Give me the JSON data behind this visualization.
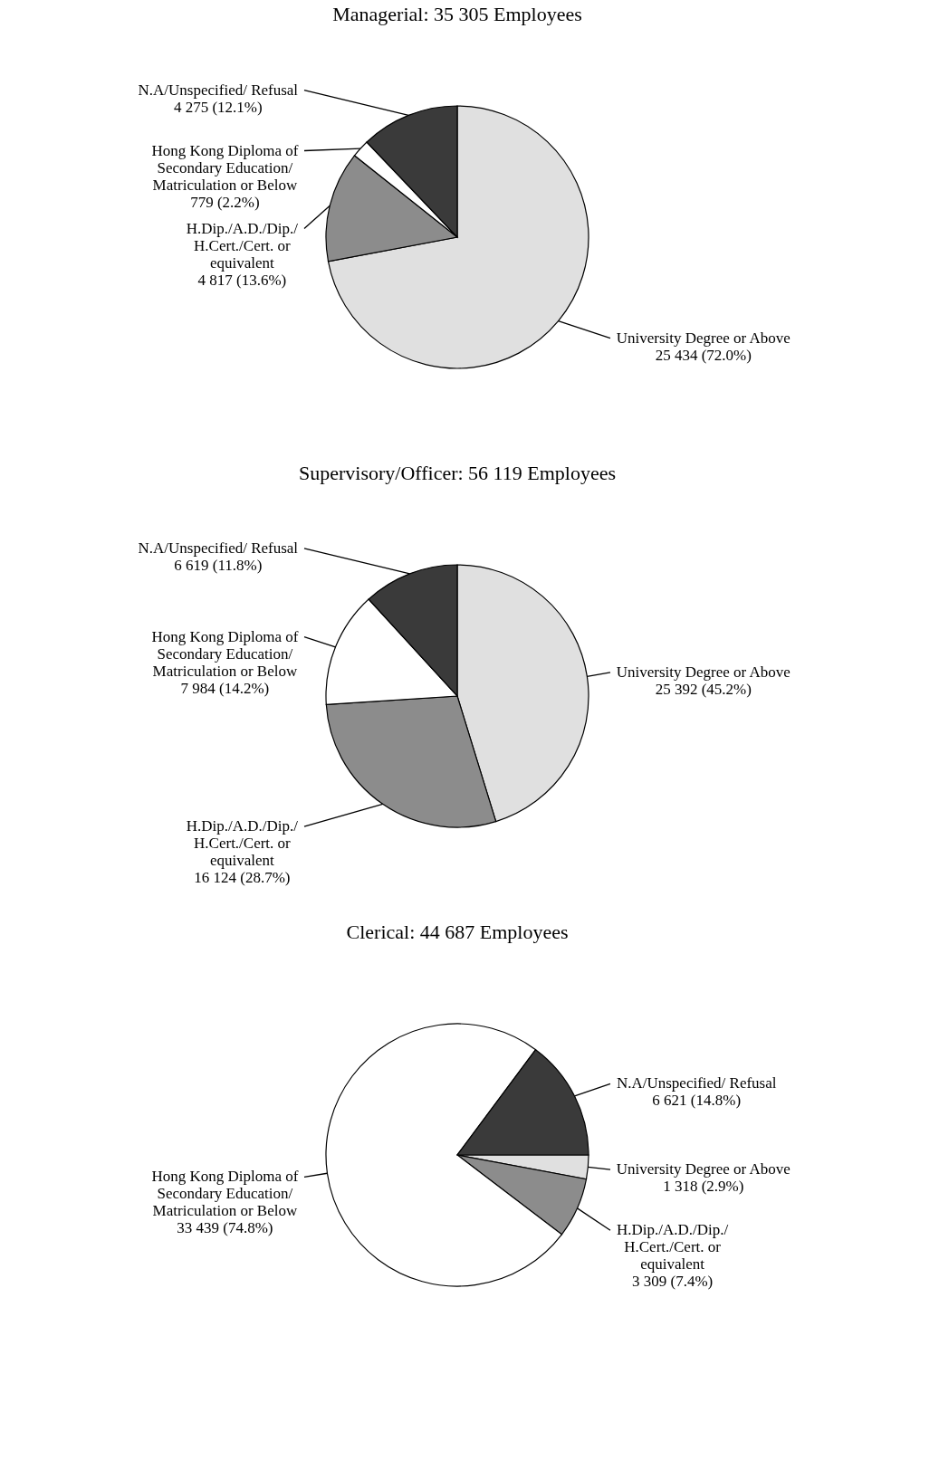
{
  "chart_data": [
    {
      "type": "pie",
      "title": "Managerial: 35 305 Employees",
      "categories": [
        "University Degree or Above",
        "H.Dip./A.D./Dip./ H.Cert./Cert. or equivalent",
        "Hong Kong Diploma of Secondary Education/ Matriculation or Below",
        "N.A/Unspecified/ Refusal"
      ],
      "values": [
        25434,
        4817,
        779,
        4275
      ],
      "colors": [
        "#e0e0e0",
        "#8c8c8c",
        "#ffffff",
        "#3a3a3a"
      ],
      "value_labels": [
        "25 434 (72.0%)",
        "4 817 (13.6%)",
        "779 (2.2%)",
        "4 275 (12.1%)"
      ],
      "legend": false
    },
    {
      "type": "pie",
      "title": "Supervisory/Officer:  56 119 Employees",
      "categories": [
        "University Degree or Above",
        "H.Dip./A.D./Dip./ H.Cert./Cert. or equivalent",
        "Hong Kong Diploma of Secondary Education/ Matriculation or Below",
        "N.A/Unspecified/ Refusal"
      ],
      "values": [
        25392,
        16124,
        7984,
        6619
      ],
      "colors": [
        "#e0e0e0",
        "#8c8c8c",
        "#ffffff",
        "#3a3a3a"
      ],
      "value_labels": [
        "25 392 (45.2%)",
        "16 124 (28.7%)",
        "7 984 (14.2%)",
        "6 619 (11.8%)"
      ],
      "legend": false
    },
    {
      "type": "pie",
      "title": "Clerical:  44 687 Employees",
      "categories": [
        "University Degree or Above",
        "H.Dip./A.D./Dip./ H.Cert./Cert. or equivalent",
        "Hong Kong Diploma of Secondary Education/ Matriculation or Below",
        "N.A/Unspecified/ Refusal"
      ],
      "values": [
        1318,
        3309,
        33439,
        6621
      ],
      "colors": [
        "#e0e0e0",
        "#8c8c8c",
        "#ffffff",
        "#3a3a3a"
      ],
      "value_labels": [
        "1 318 (2.9%)",
        "3 309 (7.4%)",
        "33 439 (74.8%)",
        "6 621 (14.8%)"
      ],
      "legend": false
    }
  ]
}
